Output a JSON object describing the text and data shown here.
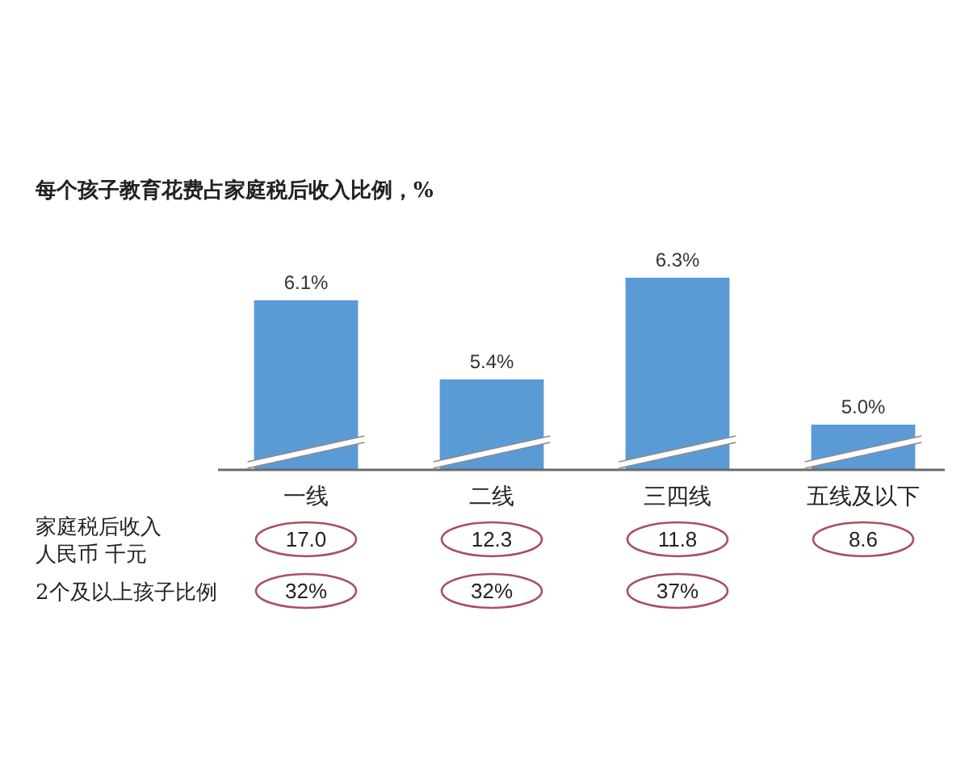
{
  "chart_data": {
    "type": "bar",
    "title": "每个孩子教育花费占家庭税后收入比例，%",
    "categories": [
      "一线",
      "二线",
      "三四线",
      "五线及以下"
    ],
    "values": [
      6.1,
      5.4,
      6.3,
      5.0
    ],
    "value_labels": [
      "6.1%",
      "5.4%",
      "6.3%",
      "5.0%"
    ],
    "color": "#5b9bd5",
    "ylim": [
      4.6,
      6.3
    ],
    "tick_labels": "x",
    "annotations": [
      "家庭税后收入人民币 千元",
      "17.0",
      "12.3",
      "11.8",
      "8.6",
      "2个及以上孩子比例",
      "32%",
      "32%",
      "37%"
    ]
  }
}
